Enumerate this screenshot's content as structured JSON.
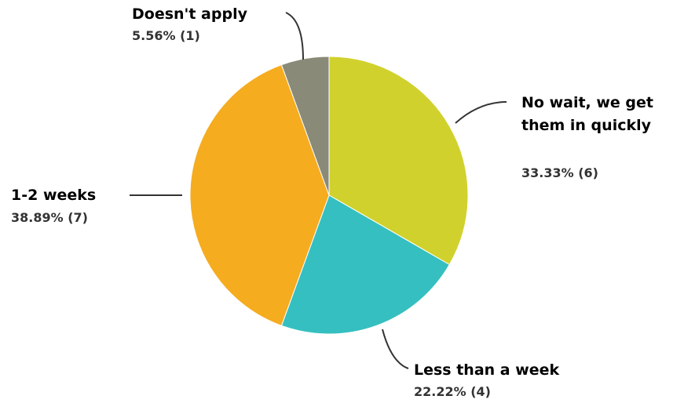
{
  "chart_data": {
    "type": "pie",
    "title": "",
    "slices": [
      {
        "label": [
          "No wait, we get",
          "them in quickly"
        ],
        "percent_label": "33.33% (6)",
        "value": 6,
        "percent": 33.33,
        "color": "#d1d12e"
      },
      {
        "label": [
          "Less than a week"
        ],
        "percent_label": "22.22% (4)",
        "value": 4,
        "percent": 22.22,
        "color": "#35bfc0"
      },
      {
        "label": [
          "1-2 weeks"
        ],
        "percent_label": "38.89% (7)",
        "value": 7,
        "percent": 38.89,
        "color": "#f5ac1f"
      },
      {
        "label": [
          "Doesn't apply"
        ],
        "percent_label": "5.56% (1)",
        "value": 1,
        "percent": 5.56,
        "color": "#8a8a78"
      }
    ],
    "start_angle": "12 o'clock",
    "direction": "clockwise",
    "legend": "none"
  }
}
